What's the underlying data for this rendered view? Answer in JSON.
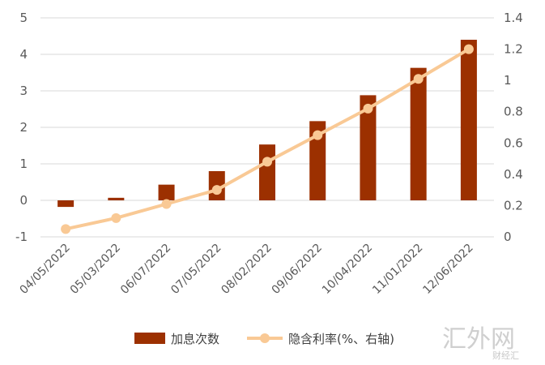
{
  "chart_data": {
    "type": "bar+line",
    "categories": [
      "04/05/2022",
      "05/03/2022",
      "06/07/2022",
      "07/05/2022",
      "08/02/2022",
      "09/06/2022",
      "10/04/2022",
      "11/01/2022",
      "12/06/2022"
    ],
    "series": [
      {
        "name": "加息次数",
        "type": "bar",
        "axis": "left",
        "color": "#9c3000",
        "values": [
          -0.18,
          0.07,
          0.43,
          0.8,
          1.53,
          2.17,
          2.88,
          3.63,
          4.4
        ]
      },
      {
        "name": "隐含利率(%、右轴)",
        "type": "line",
        "axis": "right",
        "color": "#f9c995",
        "values": [
          0.05,
          0.12,
          0.21,
          0.3,
          0.48,
          0.65,
          0.82,
          1.01,
          1.2
        ]
      }
    ],
    "y_left": {
      "min": -1,
      "max": 5,
      "ticks": [
        "-1",
        "0",
        "1",
        "2",
        "3",
        "4",
        "5"
      ]
    },
    "y_right": {
      "min": 0,
      "max": 1.4,
      "ticks": [
        "0",
        "0.2",
        "0.4",
        "0.6",
        "0.8",
        "1",
        "1.2",
        "1.4"
      ]
    },
    "grid": true,
    "legend_position": "bottom"
  },
  "watermark": {
    "main": "汇外网",
    "sub": "财经汇"
  }
}
